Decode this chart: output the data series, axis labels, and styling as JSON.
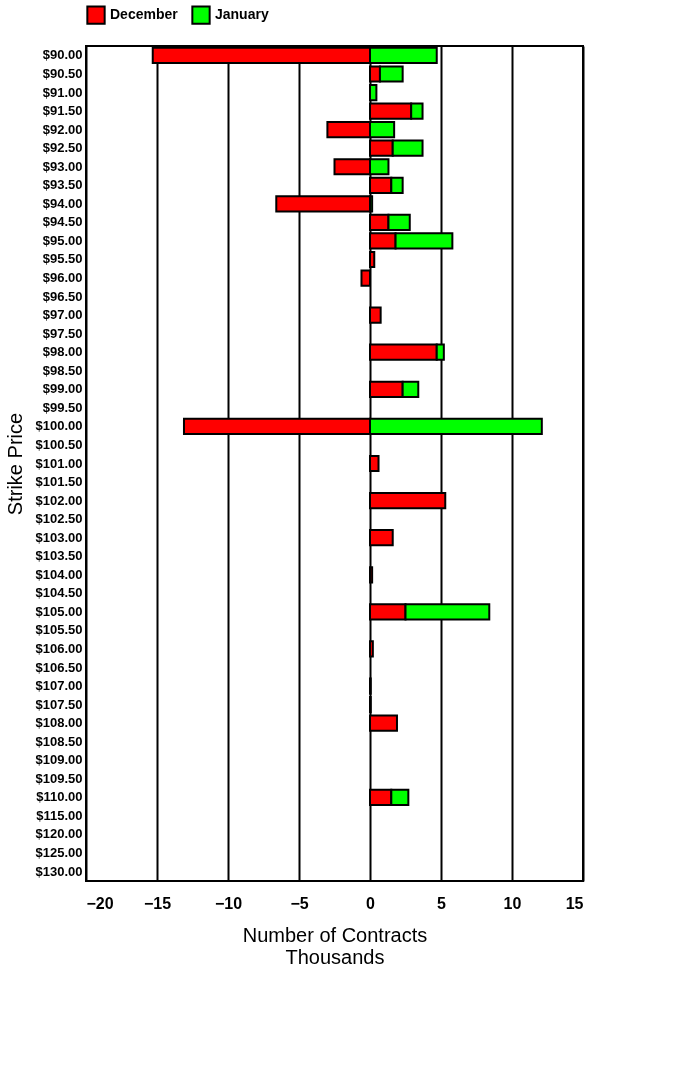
{
  "chart_data": {
    "type": "bar",
    "orientation": "horizontal",
    "stacked": true,
    "xlabel": "Number of Contracts\nThousands",
    "ylabel": "Strike Price",
    "categories": [
      "$90.00",
      "$90.50",
      "$91.00",
      "$91.50",
      "$92.00",
      "$92.50",
      "$93.00",
      "$93.50",
      "$94.00",
      "$94.50",
      "$95.00",
      "$95.50",
      "$96.00",
      "$96.50",
      "$97.00",
      "$97.50",
      "$98.00",
      "$98.50",
      "$99.00",
      "$99.50",
      "$100.00",
      "$100.50",
      "$101.00",
      "$101.50",
      "$102.00",
      "$102.50",
      "$103.00",
      "$103.50",
      "$104.00",
      "$104.50",
      "$105.00",
      "$105.50",
      "$106.00",
      "$106.50",
      "$107.00",
      "$107.50",
      "$108.00",
      "$108.50",
      "$109.00",
      "$109.50",
      "$110.00",
      "$115.00",
      "$120.00",
      "$125.00",
      "$130.00"
    ],
    "series": [
      {
        "name": "December",
        "color": "#ff0000",
        "values": [
          -15.3,
          0.7,
          null,
          2.9,
          -3.0,
          1.6,
          -2.5,
          1.5,
          -6.6,
          1.3,
          1.8,
          0.3,
          -0.6,
          null,
          0.75,
          null,
          4.7,
          null,
          2.3,
          null,
          -13.1,
          null,
          0.6,
          null,
          5.3,
          null,
          1.6,
          null,
          0.15,
          null,
          2.5,
          null,
          0.2,
          null,
          0.05,
          0.05,
          1.9,
          null,
          null,
          null,
          1.5,
          null,
          null,
          null,
          null
        ]
      },
      {
        "name": "January",
        "color": "#00ff00",
        "values": [
          4.7,
          1.6,
          0.45,
          0.8,
          1.7,
          2.1,
          1.3,
          0.8,
          0.15,
          1.5,
          4.0,
          null,
          null,
          null,
          null,
          null,
          0.5,
          null,
          1.1,
          null,
          12.1,
          null,
          null,
          null,
          null,
          null,
          null,
          null,
          null,
          null,
          5.9,
          null,
          null,
          null,
          null,
          null,
          null,
          null,
          null,
          null,
          1.2,
          null,
          null,
          null,
          null
        ]
      }
    ],
    "xlim": [
      -20,
      15
    ],
    "xticks": [
      -20,
      -15,
      -10,
      -5,
      0,
      5,
      10,
      15
    ],
    "grid": "x",
    "legend": "top"
  }
}
